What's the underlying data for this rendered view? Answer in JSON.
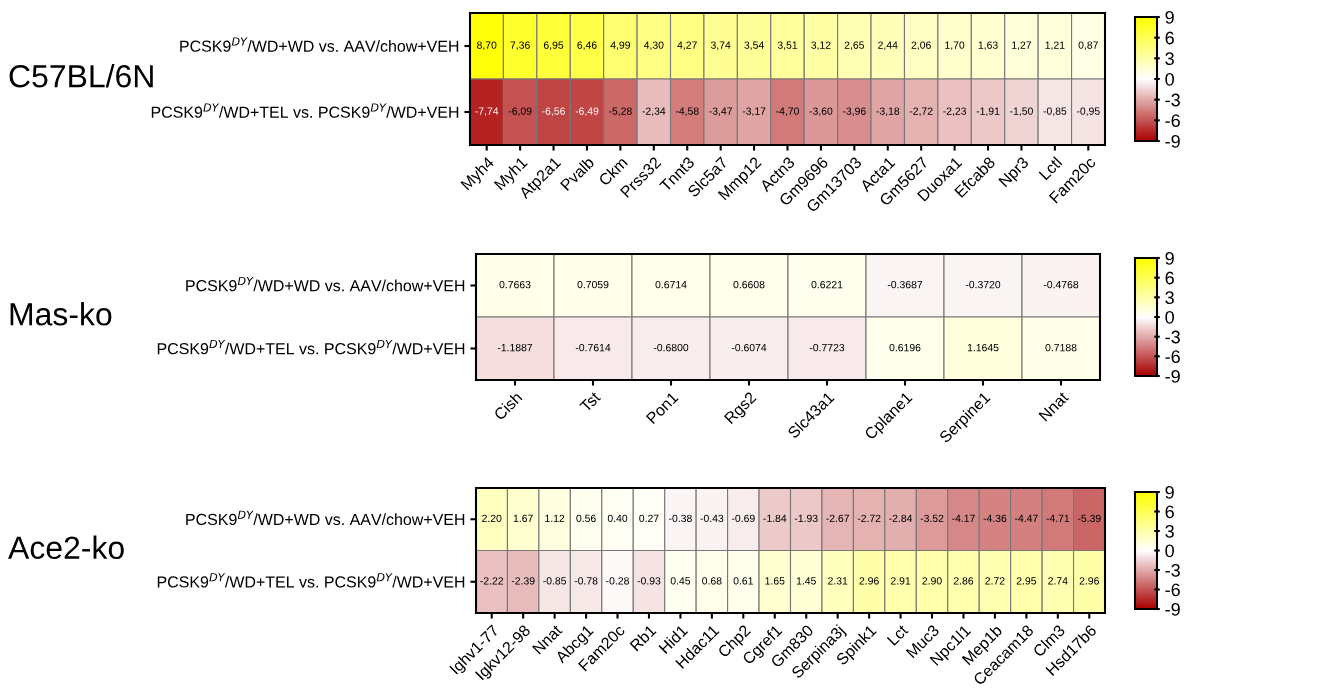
{
  "chart_data": [
    {
      "type": "heatmap",
      "title": "C57BL/6N",
      "categories": [
        "Myh4",
        "Myh1",
        "Atp2a1",
        "Pvalb",
        "Ckm",
        "Prss32",
        "Tnnt3",
        "Slc5a7",
        "Mmp12",
        "Actn3",
        "Gm9696",
        "Gm13703",
        "Acta1",
        "Gm5627",
        "Duoxa1",
        "Efcab8",
        "Npr3",
        "Lctl",
        "Fam20c"
      ],
      "y_categories": [
        "PCSK9$^{DY}$/WD+WD vs. AAV/chow+VEH",
        "PCSK9$^{DY}$/WD+TEL vs. PCSK9$^{DY}$/WD+VEH"
      ],
      "cells": [
        [
          8.7,
          7.36,
          6.95,
          6.46,
          4.99,
          4.3,
          4.27,
          3.74,
          3.54,
          3.51,
          3.12,
          2.65,
          2.44,
          2.06,
          1.7,
          1.63,
          1.27,
          1.21,
          0.87
        ],
        [
          -7.74,
          -6.09,
          -6.56,
          -6.49,
          -5.28,
          -2.34,
          -4.58,
          -3.47,
          -3.17,
          -4.7,
          -3.6,
          -3.96,
          -3.18,
          -2.72,
          -2.23,
          -1.91,
          -1.5,
          -0.85,
          -0.95
        ]
      ],
      "cell_labels": [
        [
          "8,70",
          "7,36",
          "6,95",
          "6,46",
          "4,99",
          "4,30",
          "4,27",
          "3,74",
          "3,54",
          "3,51",
          "3,12",
          "2,65",
          "2,44",
          "2,06",
          "1,70",
          "1,63",
          "1,27",
          "1,21",
          "0,87"
        ],
        [
          "-7,74",
          "-6,09",
          "-6,56",
          "-6,49",
          "-5,28",
          "-2,34",
          "-4,58",
          "-3,47",
          "-3,17",
          "-4,70",
          "-3,60",
          "-3,96",
          "-3,18",
          "-2,72",
          "-2,23",
          "-1,91",
          "-1,50",
          "-0,85",
          "-0,95"
        ]
      ],
      "clim": [
        -9,
        9
      ],
      "cticks": [
        -9,
        -6,
        -3,
        0,
        3,
        6,
        9
      ]
    },
    {
      "type": "heatmap",
      "title": "Mas-ko",
      "categories": [
        "Cish",
        "Tst",
        "Pon1",
        "Rgs2",
        "Slc43a1",
        "Cplane1",
        "Serpine1",
        "Nnat"
      ],
      "y_categories": [
        "PCSK9$^{DY}$/WD+WD vs. AAV/chow+VEH",
        "PCSK9$^{DY}$/WD+TEL vs. PCSK9$^{DY}$/WD+VEH"
      ],
      "cells": [
        [
          0.7663,
          0.7059,
          0.6714,
          0.6608,
          0.6221,
          -0.3687,
          -0.372,
          -0.4768
        ],
        [
          -1.1887,
          -0.7614,
          -0.68,
          -0.6074,
          -0.7723,
          0.6196,
          1.1645,
          0.7188
        ]
      ],
      "cell_labels": [
        [
          "0.7663",
          "0.7059",
          "0.6714",
          "0.6608",
          "0.6221",
          "-0.3687",
          "-0.3720",
          "-0.4768"
        ],
        [
          "-1.1887",
          "-0.7614",
          "-0.6800",
          "-0.6074",
          "-0.7723",
          "0.6196",
          "1.1645",
          "0.7188"
        ]
      ],
      "clim": [
        -9,
        9
      ],
      "cticks": [
        -9,
        -6,
        -3,
        0,
        3,
        6,
        9
      ]
    },
    {
      "type": "heatmap",
      "title": "Ace2-ko",
      "categories": [
        "Ighv1-77",
        "Igkv12-98",
        "Nnat",
        "Abcg1",
        "Fam20c",
        "Rb1",
        "Hid1",
        "Hdac11",
        "Chp2",
        "Cgref1",
        "Gm830",
        "Serpina3j",
        "Spink1",
        "Lct",
        "Muc3",
        "Npc1l1",
        "Mep1b",
        "Ceacam18",
        "Clm3",
        "Hsd17b6"
      ],
      "y_categories": [
        "PCSK9$^{DY}$/WD+WD vs. AAV/chow+VEH",
        "PCSK9$^{DY}$/WD+TEL vs. PCSK9$^{DY}$/WD+VEH"
      ],
      "cells": [
        [
          2.2,
          1.67,
          1.12,
          0.56,
          0.4,
          0.27,
          -0.38,
          -0.43,
          -0.69,
          -1.84,
          -1.93,
          -2.67,
          -2.72,
          -2.84,
          -3.52,
          -4.17,
          -4.36,
          -4.47,
          -4.71,
          -5.39
        ],
        [
          -2.22,
          -2.39,
          -0.85,
          -0.78,
          -0.28,
          -0.93,
          0.45,
          0.68,
          0.61,
          1.65,
          1.45,
          2.31,
          2.96,
          2.91,
          2.9,
          2.86,
          2.72,
          2.95,
          2.74,
          2.96
        ]
      ],
      "cell_labels": [
        [
          "2.20",
          "1.67",
          "1.12",
          "0.56",
          "0.40",
          "0.27",
          "-0.38",
          "-0.43",
          "-0.69",
          "-1.84",
          "-1.93",
          "-2.67",
          "-2.72",
          "-2.84",
          "-3.52",
          "-4.17",
          "-4.36",
          "-4.47",
          "-4.71",
          "-5.39"
        ],
        [
          "-2.22",
          "-2.39",
          "-0.85",
          "-0.78",
          "-0.28",
          "-0.93",
          "0.45",
          "0.68",
          "0.61",
          "1.65",
          "1.45",
          "2.31",
          "2.96",
          "2.91",
          "2.90",
          "2.86",
          "2.72",
          "2.95",
          "2.74",
          "2.96"
        ]
      ],
      "clim": [
        -9,
        9
      ],
      "cticks": [
        -9,
        -6,
        -3,
        0,
        3,
        6,
        9
      ]
    }
  ]
}
